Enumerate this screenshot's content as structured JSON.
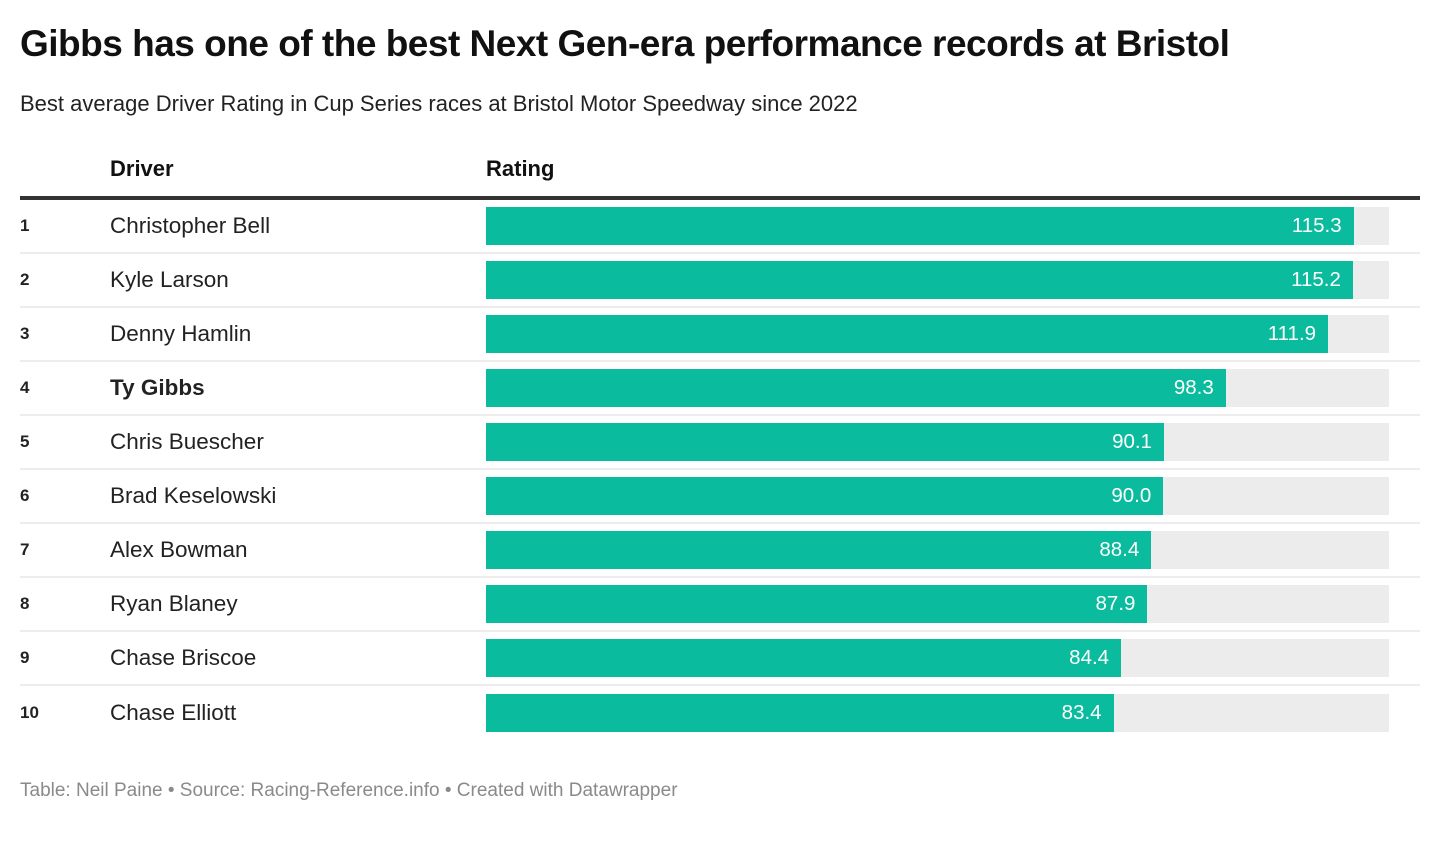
{
  "header": {
    "title": "Gibbs has one of the best Next Gen-era performance records at Bristol",
    "subtitle": "Best average Driver Rating in Cup Series races at Bristol Motor Speedway since 2022"
  },
  "table": {
    "columns": {
      "driver": "Driver",
      "rating": "Rating"
    }
  },
  "rows": [
    {
      "rank": "1",
      "driver": "Christopher Bell",
      "rating": "115.3",
      "bold": false
    },
    {
      "rank": "2",
      "driver": "Kyle Larson",
      "rating": "115.2",
      "bold": false
    },
    {
      "rank": "3",
      "driver": "Denny Hamlin",
      "rating": "111.9",
      "bold": false
    },
    {
      "rank": "4",
      "driver": "Ty Gibbs",
      "rating": "98.3",
      "bold": true
    },
    {
      "rank": "5",
      "driver": "Chris Buescher",
      "rating": "90.1",
      "bold": false
    },
    {
      "rank": "6",
      "driver": "Brad Keselowski",
      "rating": "90.0",
      "bold": false
    },
    {
      "rank": "7",
      "driver": "Alex Bowman",
      "rating": "88.4",
      "bold": false
    },
    {
      "rank": "8",
      "driver": "Ryan Blaney",
      "rating": "87.9",
      "bold": false
    },
    {
      "rank": "9",
      "driver": "Chase Briscoe",
      "rating": "84.4",
      "bold": false
    },
    {
      "rank": "10",
      "driver": "Chase Elliott",
      "rating": "83.4",
      "bold": false
    }
  ],
  "chart_data": {
    "type": "bar",
    "orientation": "horizontal",
    "title": "Gibbs has one of the best Next Gen-era performance records at Bristol",
    "subtitle": "Best average Driver Rating in Cup Series races at Bristol Motor Speedway since 2022",
    "categories": [
      "Christopher Bell",
      "Kyle Larson",
      "Denny Hamlin",
      "Ty Gibbs",
      "Chris Buescher",
      "Brad Keselowski",
      "Alex Bowman",
      "Ryan Blaney",
      "Chase Briscoe",
      "Chase Elliott"
    ],
    "ranks": [
      1,
      2,
      3,
      4,
      5,
      6,
      7,
      8,
      9,
      10
    ],
    "values": [
      115.3,
      115.2,
      111.9,
      98.3,
      90.1,
      90.0,
      88.4,
      87.9,
      84.4,
      83.4
    ],
    "xlabel": "Rating",
    "ylabel": "Driver",
    "xlim": [
      0,
      120
    ],
    "value_labels": "inside-end, white, one decimal",
    "highlighted_category": "Ty Gibbs",
    "grid": false,
    "legend": false
  },
  "colors": {
    "bar": "#0abb9d",
    "track": "#ececec",
    "value_text": "#ffffff",
    "header_rule": "#333333",
    "row_divider": "#ededed",
    "footer_text": "#8a8a8a"
  },
  "footer": {
    "text": "Table: Neil Paine • Source: Racing-Reference.info • Created with Datawrapper"
  }
}
